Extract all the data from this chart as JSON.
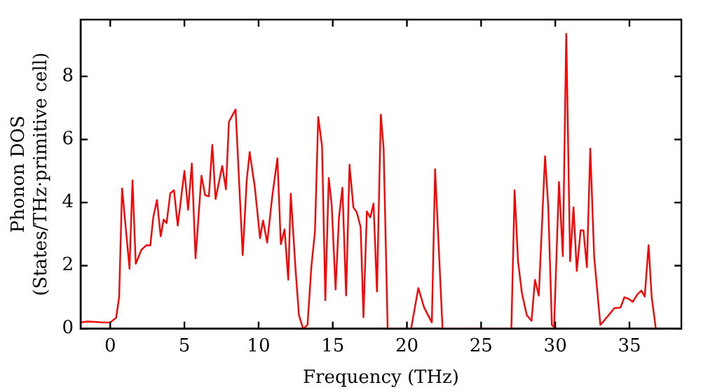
{
  "chart_data": {
    "type": "line",
    "xlabel": "Frequency (THz)",
    "ylabel": "Phonon DOS\n(States/THz·primitive cell)",
    "xlim": [
      -2,
      38.5
    ],
    "ylim": [
      0,
      9.8
    ],
    "xticks": [
      0,
      5,
      10,
      15,
      20,
      25,
      30,
      35
    ],
    "yticks": [
      0,
      2,
      4,
      6,
      8
    ],
    "grid": false,
    "legend": false,
    "marker": "none",
    "line_style": "solid",
    "series": [
      {
        "color": "#ff0000",
        "x": [
          -2,
          -1.5,
          -0.5,
          0,
          0.4,
          0.6,
          0.8,
          1.3,
          1.5,
          1.72,
          2.1,
          2.45,
          2.7,
          2.9,
          3.15,
          3.4,
          3.6,
          3.8,
          4.05,
          4.3,
          4.55,
          5.0,
          5.25,
          5.5,
          5.75,
          6.15,
          6.4,
          6.65,
          6.88,
          7.1,
          7.55,
          7.8,
          8.0,
          8.45,
          8.93,
          9.2,
          9.4,
          9.75,
          10.1,
          10.3,
          10.58,
          10.93,
          11.27,
          11.5,
          11.75,
          12.0,
          12.17,
          12.5,
          12.72,
          13.0,
          13.3,
          13.56,
          13.8,
          14.02,
          14.28,
          14.5,
          14.73,
          14.93,
          15.19,
          15.42,
          15.65,
          15.9,
          16.13,
          16.39,
          16.62,
          16.88,
          17.07,
          17.3,
          17.53,
          17.75,
          17.98,
          18.24,
          18.43,
          18.7,
          20.28,
          20.77,
          21.16,
          21.68,
          21.9,
          22.4,
          27.04,
          27.26,
          27.49,
          27.75,
          28.08,
          28.4,
          28.63,
          28.89,
          29.31,
          29.53,
          29.77,
          29.92,
          30.25,
          30.51,
          30.74,
          31.0,
          31.23,
          31.45,
          31.71,
          31.9,
          32.13,
          32.36,
          32.62,
          33.04,
          33.6,
          33.98,
          34.4,
          34.66,
          34.93,
          35.22,
          35.54,
          35.8,
          36.03,
          36.29,
          36.5,
          36.78
        ],
        "values": [
          0.2,
          0.23,
          0.2,
          0.2,
          0.35,
          1.0,
          4.45,
          1.9,
          4.7,
          2.06,
          2.5,
          2.65,
          2.64,
          3.53,
          4.08,
          2.93,
          3.46,
          3.35,
          4.3,
          4.39,
          3.27,
          5.0,
          3.77,
          5.24,
          2.23,
          4.85,
          4.23,
          4.2,
          5.83,
          4.11,
          5.16,
          4.42,
          6.56,
          6.95,
          2.33,
          4.7,
          5.6,
          4.47,
          2.87,
          3.43,
          2.73,
          4.23,
          5.4,
          2.68,
          3.15,
          1.55,
          4.28,
          1.83,
          0.43,
          0,
          0.12,
          1.98,
          3.07,
          6.71,
          5.78,
          0.9,
          4.78,
          3.92,
          1.24,
          3.53,
          4.47,
          1.05,
          5.2,
          3.85,
          3.69,
          3.22,
          0.36,
          3.72,
          3.53,
          3.97,
          1.18,
          6.79,
          5.71,
          0,
          0,
          1.29,
          0.67,
          0.2,
          5.06,
          0,
          0,
          4.39,
          2.14,
          1.13,
          0.43,
          0.25,
          1.55,
          1.05,
          5.47,
          3.85,
          0.12,
          0.05,
          4.65,
          2.3,
          9.35,
          2.14,
          3.85,
          1.83,
          3.12,
          3.12,
          1.95,
          5.71,
          2.3,
          0.12,
          0.43,
          0.65,
          0.67,
          1.0,
          0.95,
          0.85,
          1.09,
          1.21,
          1.02,
          2.65,
          1.0,
          0
        ]
      }
    ]
  }
}
